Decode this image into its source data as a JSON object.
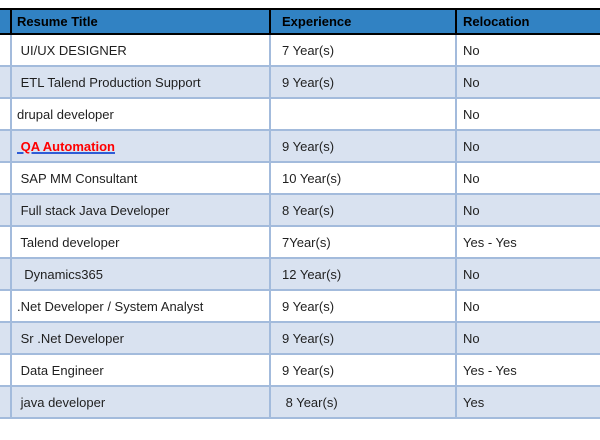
{
  "table": {
    "columns": [
      {
        "label": "Resume Title"
      },
      {
        "label": "Experience"
      },
      {
        "label": "Relocation"
      }
    ],
    "rows": [
      {
        "title": " UI/UX DESIGNER",
        "experience": "7 Year(s)",
        "relocation": "No"
      },
      {
        "title": " ETL Talend Production Support",
        "experience": "9 Year(s)",
        "relocation": "No"
      },
      {
        "title": "drupal developer",
        "experience": "",
        "relocation": "No"
      },
      {
        "title": " QA Automation",
        "experience": "9 Year(s)",
        "relocation": "No",
        "highlighted": true
      },
      {
        "title": " SAP MM Consultant",
        "experience": "10 Year(s)",
        "relocation": "No"
      },
      {
        "title": " Full stack Java Developer",
        "experience": "8 Year(s)",
        "relocation": "No"
      },
      {
        "title": " Talend developer",
        "experience": "7Year(s)",
        "relocation": "Yes - Yes"
      },
      {
        "title": "  Dynamics365",
        "experience": "12 Year(s)",
        "relocation": "No"
      },
      {
        "title": ".Net Developer / System Analyst",
        "experience": "9 Year(s)",
        "relocation": "No"
      },
      {
        "title": " Sr .Net Developer",
        "experience": "9 Year(s)",
        "relocation": "No"
      },
      {
        "title": " Data Engineer",
        "experience": "9 Year(s)",
        "relocation": "Yes - Yes"
      },
      {
        "title": " java developer",
        "experience": " 8 Year(s)",
        "relocation": "Yes"
      }
    ],
    "colors": {
      "header_background": "#3182c3",
      "header_text": "#000000",
      "header_border": "#000000",
      "row_background": "#ffffff",
      "alt_row_background": "#d9e2f0",
      "row_border": "#a3bbdc",
      "body_text": "#1f1f1f",
      "highlight_text": "#ff0000",
      "highlight_underline": "#2e5cd6"
    }
  }
}
